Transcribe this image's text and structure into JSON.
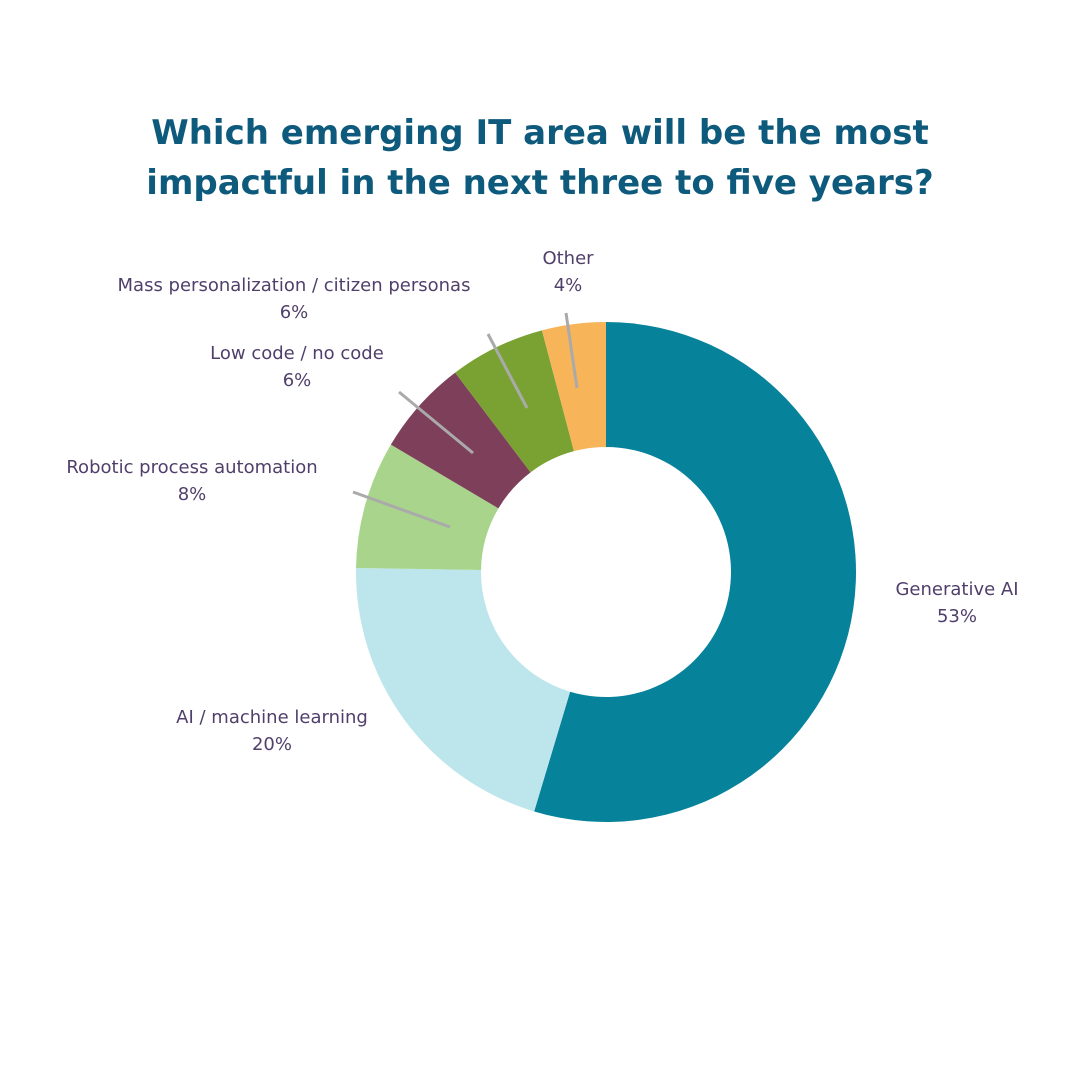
{
  "chart_data": {
    "type": "pie",
    "title": "Which emerging IT area will be the most impactful in the next three to five years?",
    "title_lines": [
      "Which emerging IT area will be the most",
      "impactful in the next three to five years?"
    ],
    "slices": [
      {
        "name": "Generative AI",
        "label": "53%",
        "value": 53,
        "color": "#06829b"
      },
      {
        "name": "AI / machine learning",
        "label": "20%",
        "value": 20,
        "color": "#bde6ec"
      },
      {
        "name": "Robotic process automation",
        "label": "8%",
        "value": 8,
        "color": "#a8d48c"
      },
      {
        "name": "Low code / no code",
        "label": "6%",
        "value": 6,
        "color": "#7e3f5b"
      },
      {
        "name": "Mass personalization / citizen personas",
        "label": "6%",
        "value": 6,
        "color": "#79a232"
      },
      {
        "name": "Other",
        "label": "4%",
        "value": 4,
        "color": "#f8b459"
      }
    ],
    "leader_color": "#aaaaaa",
    "label_color": "#4f3f6a"
  }
}
